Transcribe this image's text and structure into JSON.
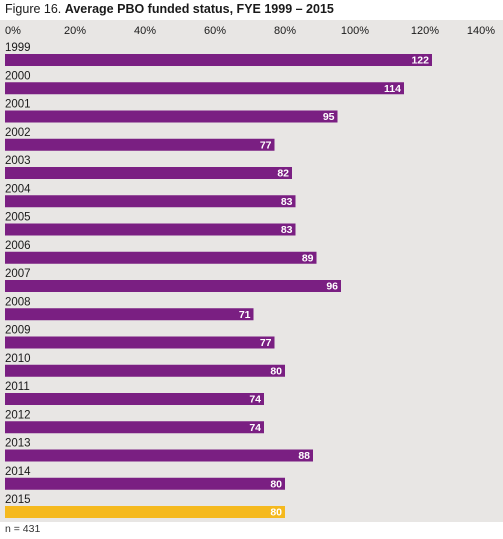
{
  "colors": {
    "bar": "#7a1f82",
    "highlight_bar": "#f5b91e",
    "background": "#e8e6e4",
    "label_text": "#ffffff",
    "axis_text": "#1a1a1a"
  },
  "title": {
    "prefix": "Figure 16.",
    "main": "Average PBO funded status, FYE 1999 – 2015"
  },
  "note": "n = 431",
  "chart_data": {
    "type": "bar",
    "orientation": "horizontal",
    "title": "Average PBO funded status, FYE 1999 – 2015",
    "xlabel": "",
    "ylabel": "",
    "xlim": [
      0,
      140
    ],
    "x_ticks": [
      0,
      20,
      40,
      60,
      80,
      100,
      120,
      140
    ],
    "x_tick_labels": [
      "0%",
      "20%",
      "40%",
      "60%",
      "80%",
      "100%",
      "120%",
      "140%"
    ],
    "categories": [
      "1999",
      "2000",
      "2001",
      "2002",
      "2003",
      "2004",
      "2005",
      "2006",
      "2007",
      "2008",
      "2009",
      "2010",
      "2011",
      "2012",
      "2013",
      "2014",
      "2015"
    ],
    "values": [
      122,
      114,
      95,
      77,
      82,
      83,
      83,
      89,
      96,
      71,
      77,
      80,
      74,
      74,
      88,
      80,
      80
    ],
    "highlight_category": "2015",
    "grid": false,
    "legend": "none"
  }
}
